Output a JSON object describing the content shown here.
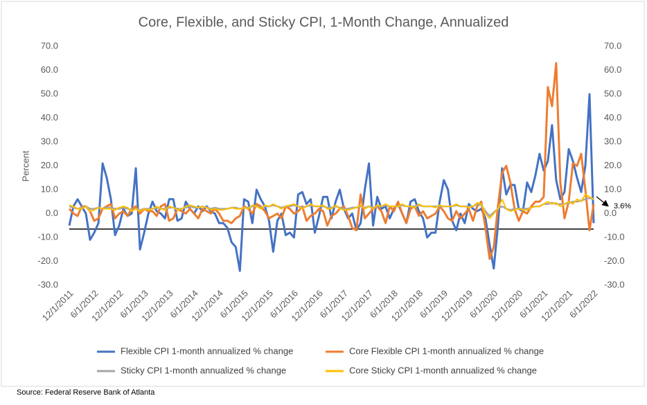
{
  "chart_data": {
    "type": "line",
    "title": "Core, Flexible, and Sticky CPI, 1-Month Change, Annualized",
    "y_label": "Percent",
    "source": "Source: Federal Reserve Bank of Atlanta",
    "annotation": {
      "text": "3.6%"
    },
    "hline": -6.5,
    "grid": false,
    "legend_position": "bottom",
    "ylim": [
      -30,
      70
    ],
    "yticks": [
      {
        "value": -30,
        "label": "-30.0"
      },
      {
        "value": -20,
        "label": "-20.0"
      },
      {
        "value": -10,
        "label": "-10.0"
      },
      {
        "value": 0,
        "label": "0.0"
      },
      {
        "value": 10,
        "label": "10.0"
      },
      {
        "value": 20,
        "label": "20.0"
      },
      {
        "value": 30,
        "label": "30.0"
      },
      {
        "value": 40,
        "label": "40.0"
      },
      {
        "value": 50,
        "label": "50.0"
      },
      {
        "value": 60,
        "label": "60.0"
      },
      {
        "value": 70,
        "label": "70.0"
      }
    ],
    "y2lim": [
      -30,
      70
    ],
    "y2ticks": [
      {
        "value": -30,
        "label": "-30.0"
      },
      {
        "value": -20,
        "label": "-20.0"
      },
      {
        "value": -10,
        "label": "-10.0"
      },
      {
        "value": 0,
        "label": "0.0"
      },
      {
        "value": 10,
        "label": "10.0"
      },
      {
        "value": 20,
        "label": "20.0"
      },
      {
        "value": 30,
        "label": "30.0"
      },
      {
        "value": 40,
        "label": "40.0"
      },
      {
        "value": 50,
        "label": "50.0"
      },
      {
        "value": 60,
        "label": "60.0"
      },
      {
        "value": 70,
        "label": "70.0"
      }
    ],
    "categories": [
      "12/1/2011",
      null,
      null,
      null,
      null,
      null,
      "6/1/2012",
      null,
      null,
      null,
      null,
      null,
      "12/1/2012",
      null,
      null,
      null,
      null,
      null,
      "6/1/2013",
      null,
      null,
      null,
      null,
      null,
      "12/1/2013",
      null,
      null,
      null,
      null,
      null,
      "6/1/2014",
      null,
      null,
      null,
      null,
      null,
      "12/1/2014",
      null,
      null,
      null,
      null,
      null,
      "6/1/2015",
      null,
      null,
      null,
      null,
      null,
      "12/1/2015",
      null,
      null,
      null,
      null,
      null,
      "6/1/2016",
      null,
      null,
      null,
      null,
      null,
      "12/1/2016",
      null,
      null,
      null,
      null,
      null,
      "6/1/2017",
      null,
      null,
      null,
      null,
      null,
      "12/1/2017",
      null,
      null,
      null,
      null,
      null,
      "6/1/2018",
      null,
      null,
      null,
      null,
      null,
      "12/1/2018",
      null,
      null,
      null,
      null,
      null,
      "6/1/2019",
      null,
      null,
      null,
      null,
      null,
      "12/1/2019",
      null,
      null,
      null,
      null,
      null,
      "6/1/2020",
      null,
      null,
      null,
      null,
      null,
      "12/1/2020",
      null,
      null,
      null,
      null,
      null,
      "6/1/2021",
      null,
      null,
      null,
      null,
      null,
      "12/1/2021",
      null,
      null,
      null,
      null,
      null,
      "6/1/2022"
    ],
    "series": [
      {
        "name": "Flexible CPI 1-month annualized % change",
        "color": "#4472c4",
        "width": 3,
        "values": [
          -5,
          3,
          6,
          3,
          0,
          -11,
          -8,
          -4,
          21,
          15,
          6,
          -9,
          -5,
          2,
          -1,
          0,
          19,
          -15,
          -8,
          0,
          5,
          1,
          0,
          -2,
          6,
          6,
          -3,
          -2,
          5,
          2,
          0,
          3,
          1,
          3,
          1,
          0,
          -4,
          -4,
          -6,
          -12,
          -14,
          -24,
          6,
          5,
          -4,
          10,
          6,
          3,
          -3,
          -16,
          -3,
          0,
          -9,
          -8,
          -10,
          8,
          9,
          4,
          6,
          -8,
          -1,
          7,
          7,
          -2,
          5,
          10,
          2,
          -2,
          0,
          -7,
          -4,
          10,
          21,
          -5,
          7,
          2,
          3,
          -2,
          2,
          4,
          0,
          -4,
          5,
          6,
          1,
          -2,
          -10,
          -8,
          -8,
          5,
          14,
          10,
          -3,
          -7,
          0,
          -4,
          4,
          2,
          1,
          2,
          -2,
          -13,
          -23,
          -5,
          19,
          8,
          12,
          12,
          2,
          1,
          13,
          9,
          16,
          25,
          18,
          22,
          37,
          14,
          6,
          9,
          27,
          22,
          15,
          9,
          20,
          50,
          -4
        ]
      },
      {
        "name": "Core Flexible CPI 1-month annualized % change",
        "color": "#ed7d31",
        "width": 3,
        "values": [
          2,
          0,
          -1,
          3,
          3,
          1,
          -3,
          -2,
          2,
          3,
          4,
          -2,
          0,
          1,
          -1,
          2,
          3,
          0,
          2,
          1,
          1,
          -1,
          3,
          4,
          -3,
          -2,
          2,
          1,
          0,
          2,
          0,
          -2,
          2,
          1,
          0,
          2,
          0,
          -3,
          -3,
          -4,
          -2,
          -1,
          3,
          2,
          0,
          4,
          3,
          1,
          -2,
          -1,
          0,
          -2,
          3,
          2,
          0,
          1,
          3,
          -3,
          -1,
          0,
          2,
          1,
          -5,
          -1,
          0,
          2,
          3,
          -1,
          -6,
          -7,
          8,
          -2,
          0,
          2,
          3,
          1,
          -4,
          3,
          1,
          5,
          0,
          -4,
          2,
          3,
          -1,
          1,
          -2,
          -1,
          0,
          3,
          1,
          -2,
          -3,
          1,
          -2,
          0,
          2,
          -3,
          3,
          5,
          -6,
          -19,
          -14,
          3,
          17,
          20,
          13,
          2,
          -3,
          1,
          0,
          3,
          5,
          5,
          7,
          53,
          45,
          63,
          13,
          -2,
          5,
          21,
          20,
          25,
          10,
          -7,
          4
        ]
      },
      {
        "name": "Sticky CPI 1-month annualized % change",
        "color": "#a5a5a5",
        "width": 2.5,
        "values": [
          3,
          2.5,
          2,
          2.5,
          3,
          2,
          2,
          2.5,
          2,
          2.5,
          2.5,
          2,
          2,
          2.5,
          2,
          1.5,
          2,
          1.5,
          2,
          2,
          2,
          2.5,
          2,
          2,
          2.5,
          2.5,
          2,
          2,
          2.5,
          3,
          2.5,
          2.5,
          3,
          2.5,
          2,
          2.5,
          2,
          2,
          2,
          2.5,
          2.5,
          2,
          2.5,
          2.5,
          3,
          3,
          2.5,
          3,
          3,
          3.5,
          3,
          2.5,
          3,
          3,
          3.5,
          3,
          2.5,
          3,
          3.5,
          3,
          3,
          3,
          2.5,
          2.5,
          3,
          2.5,
          2,
          2,
          2.5,
          2.5,
          3,
          2.5,
          3,
          2.5,
          3,
          3,
          3.5,
          3,
          3,
          3,
          3.5,
          3,
          3,
          3,
          3.5,
          3,
          3,
          3,
          3,
          3,
          3,
          3,
          3,
          3.5,
          3,
          3,
          3,
          3,
          4,
          3.5,
          1,
          -1,
          0.5,
          2,
          3,
          2,
          1.5,
          2,
          2,
          2,
          2,
          2.5,
          3,
          3,
          4,
          4,
          4.5,
          4,
          4,
          4,
          4.5,
          5,
          5,
          5.5,
          6,
          6.5,
          6
        ]
      },
      {
        "name": "Core Sticky CPI 1-month annualized % change",
        "color": "#ffc000",
        "width": 2,
        "values": [
          3.5,
          3,
          2,
          2,
          3,
          1,
          1.5,
          2.5,
          2,
          2,
          2,
          1.5,
          2.5,
          3,
          2.5,
          1,
          2,
          1,
          2,
          1.5,
          2,
          3,
          2,
          1.5,
          3,
          2.5,
          1.5,
          2,
          3,
          3.5,
          3,
          2.5,
          3,
          2.5,
          1.5,
          2,
          1.5,
          1.5,
          2,
          2.5,
          2,
          2,
          2.5,
          2,
          3.5,
          3,
          2,
          3.5,
          3,
          4,
          3,
          2,
          3,
          3.5,
          4,
          3,
          2,
          3,
          4,
          3,
          3,
          3.5,
          2,
          2,
          3.5,
          2,
          1.5,
          1.5,
          2,
          2.5,
          3.5,
          2,
          3,
          2,
          3.5,
          3,
          4,
          3,
          3,
          3,
          4,
          3,
          3,
          2.5,
          4,
          3,
          3,
          3,
          2.5,
          3.5,
          3,
          3,
          3,
          4,
          3,
          3,
          2.5,
          3,
          4.5,
          4,
          0,
          -2,
          0,
          2,
          6,
          2,
          1,
          1.5,
          2,
          1.5,
          1.5,
          2.5,
          3,
          3,
          4,
          5,
          4,
          4.5,
          3,
          4,
          5,
          4,
          6,
          5,
          8,
          7,
          6
        ]
      }
    ]
  }
}
